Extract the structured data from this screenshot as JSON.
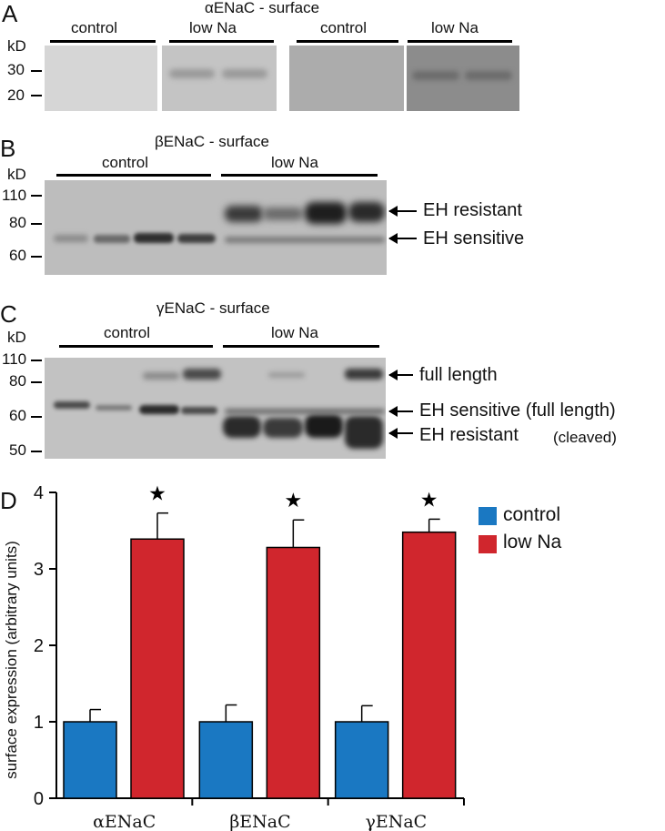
{
  "panelA": {
    "letter": "A",
    "title": "αENaC - surface",
    "kd": "kD",
    "markers": [
      "30",
      "20"
    ],
    "groups": [
      "control",
      "low Na",
      "control",
      "low Na"
    ]
  },
  "panelB": {
    "letter": "B",
    "title": "βENaC - surface",
    "kd": "kD",
    "markers": [
      "110",
      "80",
      "60"
    ],
    "groups": [
      "control",
      "low Na"
    ],
    "annotations": [
      "EH resistant",
      "EH sensitive"
    ]
  },
  "panelC": {
    "letter": "C",
    "title": "γENaC - surface",
    "kd": "kD",
    "markers": [
      "110",
      "80",
      "60",
      "50"
    ],
    "groups": [
      "control",
      "low Na"
    ],
    "annotations": [
      "full length",
      "EH sensitive (full length)",
      "EH resistant",
      "(cleaved)"
    ]
  },
  "panelD": {
    "letter": "D",
    "colors": {
      "control": "#1a78c2",
      "low_na": "#d0262d"
    }
  },
  "chart_data": {
    "type": "bar",
    "categories": [
      "αENaC",
      "βENaC",
      "γENaC"
    ],
    "series": [
      {
        "name": "control",
        "values": [
          1.0,
          1.0,
          1.0
        ],
        "errors": [
          0.16,
          0.22,
          0.21
        ]
      },
      {
        "name": "low Na",
        "values": [
          3.39,
          3.28,
          3.48
        ],
        "errors": [
          0.34,
          0.36,
          0.17
        ]
      }
    ],
    "significance": [
      "★",
      "★",
      "★"
    ],
    "ylabel": "surface expression (arbitrary units)",
    "xlabel": "",
    "ylim": [
      0,
      4
    ],
    "yticks": [
      0,
      1,
      2,
      3,
      4
    ],
    "legend_position": "top-right",
    "grid": false
  }
}
